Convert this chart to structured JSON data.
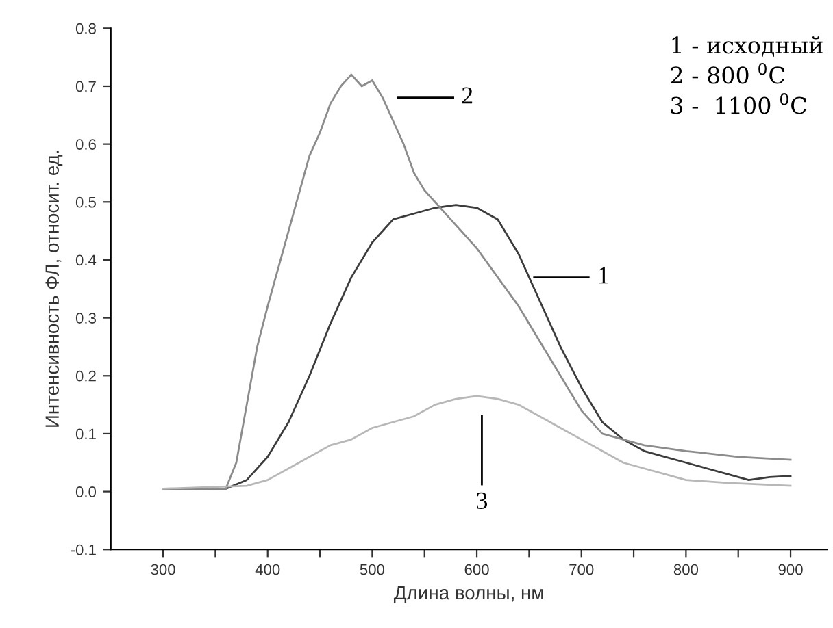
{
  "chart_data": {
    "type": "line",
    "xlabel": "Длина волны, нм",
    "ylabel": "Интенсивность ФЛ, относит. ед.",
    "xlim": [
      250,
      935
    ],
    "ylim": [
      -0.1,
      0.8
    ],
    "xticks": [
      300,
      {
        "value": 350,
        "label": null
      },
      400,
      {
        "value": 450,
        "label": null
      },
      500,
      {
        "value": 550,
        "label": null
      },
      600,
      {
        "value": 650,
        "label": null
      },
      700,
      {
        "value": 750,
        "label": null
      },
      800,
      {
        "value": 850,
        "label": null
      },
      900
    ],
    "yticks": [
      -0.1,
      {
        "value": 0,
        "label": "0.0"
      },
      0.1,
      0.2,
      0.3,
      0.4,
      0.5,
      0.6,
      0.7,
      0.8
    ],
    "grid": false,
    "legend": false,
    "marker": "none",
    "line_style": "solid",
    "series": [
      {
        "color": "#3c3c3c",
        "x": [
          300,
          360,
          380,
          400,
          420,
          440,
          460,
          480,
          500,
          520,
          540,
          560,
          580,
          600,
          620,
          640,
          660,
          680,
          700,
          720,
          740,
          760,
          780,
          800,
          820,
          840,
          860,
          880,
          900
        ],
        "values": [
          0.005,
          0.005,
          0.02,
          0.06,
          0.12,
          0.2,
          0.29,
          0.37,
          0.43,
          0.47,
          0.48,
          0.49,
          0.495,
          0.49,
          0.47,
          0.41,
          0.33,
          0.25,
          0.18,
          0.12,
          0.09,
          0.07,
          0.06,
          0.05,
          0.04,
          0.03,
          0.02,
          0.025,
          0.027
        ]
      },
      {
        "color": "#8c8c8c",
        "x": [
          300,
          360,
          370,
          380,
          390,
          400,
          420,
          440,
          450,
          460,
          470,
          480,
          490,
          500,
          510,
          520,
          530,
          540,
          550,
          560,
          580,
          600,
          620,
          640,
          660,
          680,
          700,
          720,
          760,
          800,
          850,
          900
        ],
        "values": [
          0.005,
          0.005,
          0.05,
          0.15,
          0.25,
          0.32,
          0.45,
          0.58,
          0.62,
          0.67,
          0.7,
          0.72,
          0.7,
          0.71,
          0.68,
          0.64,
          0.6,
          0.55,
          0.52,
          0.5,
          0.46,
          0.42,
          0.37,
          0.32,
          0.26,
          0.2,
          0.14,
          0.1,
          0.08,
          0.07,
          0.06,
          0.055
        ]
      },
      {
        "color": "#b8b8b8",
        "x": [
          300,
          380,
          400,
          420,
          440,
          460,
          480,
          500,
          520,
          540,
          560,
          580,
          600,
          620,
          640,
          660,
          680,
          700,
          720,
          740,
          760,
          780,
          800,
          840,
          900
        ],
        "values": [
          0.005,
          0.01,
          0.02,
          0.04,
          0.06,
          0.08,
          0.09,
          0.11,
          0.12,
          0.13,
          0.15,
          0.16,
          0.165,
          0.16,
          0.15,
          0.13,
          0.11,
          0.09,
          0.07,
          0.05,
          0.04,
          0.03,
          0.02,
          0.015,
          0.01
        ]
      }
    ],
    "annotations": [
      "1",
      "2",
      "3",
      "1 - исходный",
      "2 - 800 $^{0}$C",
      "3 -  1100 $^{0}$C"
    ]
  }
}
